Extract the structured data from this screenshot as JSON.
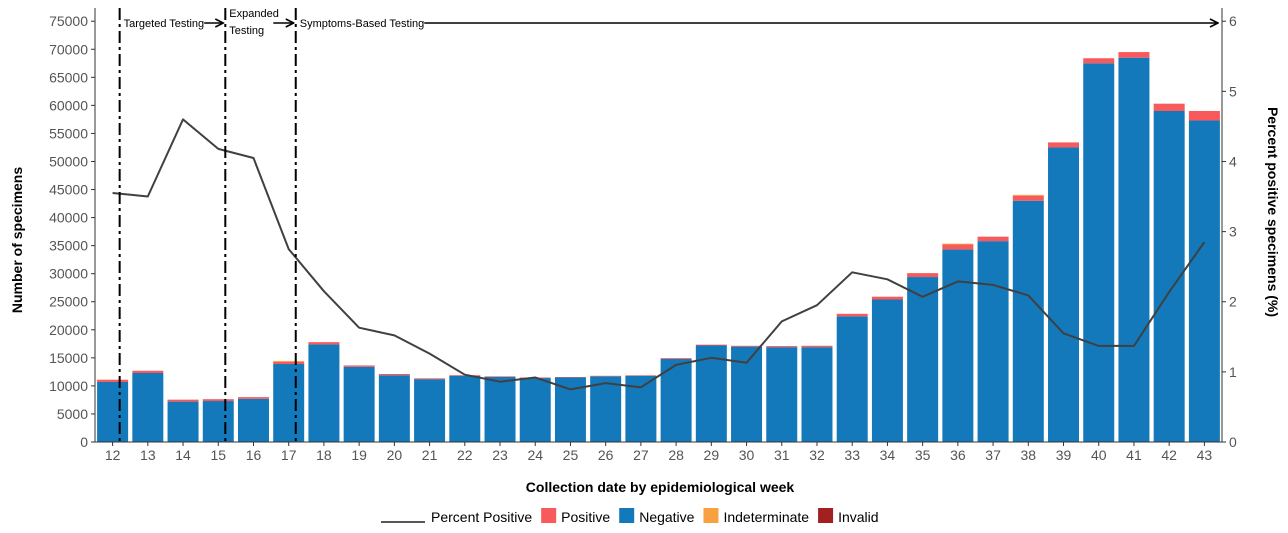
{
  "chart_data": {
    "type": "bar",
    "stacked": true,
    "xlabel": "Collection date by epidemiological week",
    "ylabel": "Number of specimens",
    "y2label": "Percent positive specimens (%)",
    "categories": [
      "12",
      "13",
      "14",
      "15",
      "16",
      "17",
      "18",
      "19",
      "20",
      "21",
      "22",
      "23",
      "24",
      "25",
      "26",
      "27",
      "28",
      "29",
      "30",
      "31",
      "32",
      "33",
      "34",
      "35",
      "36",
      "37",
      "38",
      "39",
      "40",
      "41",
      "42",
      "43"
    ],
    "ylim": [
      0,
      77000
    ],
    "yticks": [
      0,
      5000,
      10000,
      15000,
      20000,
      25000,
      30000,
      35000,
      40000,
      45000,
      50000,
      55000,
      60000,
      65000,
      70000,
      75000
    ],
    "y2lim": [
      0,
      6.16
    ],
    "y2ticks": [
      0,
      1,
      2,
      3,
      4,
      5,
      6
    ],
    "series": [
      {
        "name": "Negative",
        "color": "#1379bb",
        "values": [
          10700,
          12300,
          7200,
          7300,
          7700,
          13900,
          17400,
          13400,
          11900,
          11200,
          11800,
          11600,
          11400,
          11500,
          11700,
          11800,
          14800,
          17200,
          17000,
          16900,
          16900,
          22400,
          25400,
          29400,
          34300,
          35800,
          43000,
          52500,
          67500,
          68500,
          59000,
          57300
        ]
      },
      {
        "name": "Positive",
        "color": "#f8595b",
        "values": [
          400,
          400,
          350,
          330,
          300,
          400,
          400,
          250,
          220,
          150,
          120,
          110,
          100,
          90,
          100,
          100,
          150,
          150,
          150,
          200,
          250,
          450,
          500,
          700,
          900,
          800,
          900,
          900,
          900,
          1000,
          1300,
          1700
        ]
      },
      {
        "name": "Indeterminate",
        "color": "#f9a040",
        "values": [
          0,
          0,
          0,
          0,
          0,
          150,
          0,
          0,
          0,
          0,
          0,
          0,
          0,
          0,
          0,
          0,
          0,
          0,
          0,
          0,
          0,
          0,
          0,
          0,
          150,
          0,
          150,
          0,
          0,
          0,
          0,
          0
        ]
      },
      {
        "name": "Invalid",
        "color": "#a32020",
        "values": [
          0,
          0,
          0,
          0,
          0,
          0,
          0,
          0,
          0,
          0,
          0,
          0,
          0,
          0,
          0,
          0,
          0,
          0,
          0,
          0,
          0,
          0,
          0,
          0,
          0,
          0,
          0,
          0,
          0,
          0,
          0,
          0
        ]
      }
    ],
    "line": {
      "name": "Percent Positive",
      "color": "#404040",
      "values": [
        3.55,
        3.5,
        4.6,
        4.18,
        4.05,
        2.75,
        2.15,
        1.63,
        1.52,
        1.26,
        0.96,
        0.86,
        0.92,
        0.75,
        0.84,
        0.78,
        1.1,
        1.2,
        1.13,
        1.72,
        1.95,
        2.42,
        2.32,
        2.07,
        2.29,
        2.24,
        2.09,
        1.55,
        1.37,
        1.37,
        2.14,
        2.85
      ]
    },
    "phases": [
      {
        "label": "Targeted Testing",
        "start_week": 12.2,
        "end_week": 15.2
      },
      {
        "label": "Expanded",
        "label2": "Testing",
        "start_week": 15.2,
        "end_week": 17.2
      },
      {
        "label": "Symptoms-Based Testing",
        "start_week": 17.2,
        "end_week": 43.8
      }
    ],
    "grid": false,
    "legend_position": "bottom"
  },
  "legend": [
    {
      "label": "Percent Positive",
      "kind": "line",
      "color": "#404040"
    },
    {
      "label": "Positive",
      "kind": "box",
      "color": "#f8595b"
    },
    {
      "label": "Negative",
      "kind": "box",
      "color": "#1379bb"
    },
    {
      "label": "Indeterminate",
      "kind": "box",
      "color": "#f9a040"
    },
    {
      "label": "Invalid",
      "kind": "box",
      "color": "#a32020"
    }
  ]
}
